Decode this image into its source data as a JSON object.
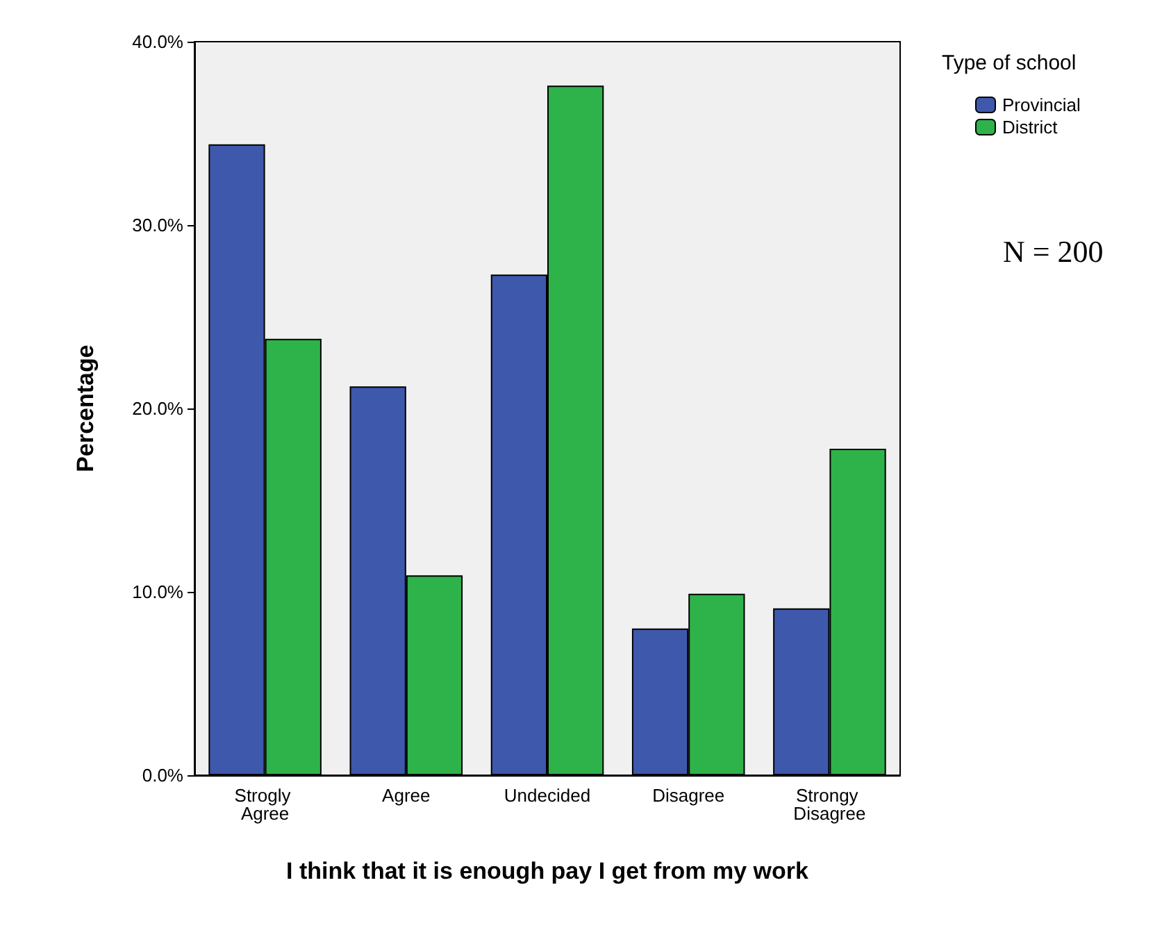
{
  "chart_data": {
    "type": "bar",
    "xlabel": "I think that it is enough pay I get from my work",
    "ylabel": "Percentage",
    "legend_title": "Type of school",
    "categories": [
      "Strogly Agree",
      "Agree",
      "Undecided",
      "Disagree",
      "Strongy Disagree"
    ],
    "series": [
      {
        "name": "Provincial",
        "color": "#3e58ac",
        "values": [
          34.4,
          21.2,
          27.3,
          8.0,
          9.1
        ]
      },
      {
        "name": "District",
        "color": "#2db34a",
        "values": [
          23.8,
          10.9,
          37.6,
          9.9,
          17.8
        ]
      }
    ],
    "ylim": [
      0,
      40
    ],
    "yticks": [
      {
        "value": 0,
        "label": "0.0%"
      },
      {
        "value": 10,
        "label": "10.0%"
      },
      {
        "value": 20,
        "label": "20.0%"
      },
      {
        "value": 30,
        "label": "30.0%"
      },
      {
        "value": 40,
        "label": "40.0%"
      }
    ],
    "grid": false,
    "legend": "top right",
    "annotations": [
      "N = 200"
    ]
  }
}
